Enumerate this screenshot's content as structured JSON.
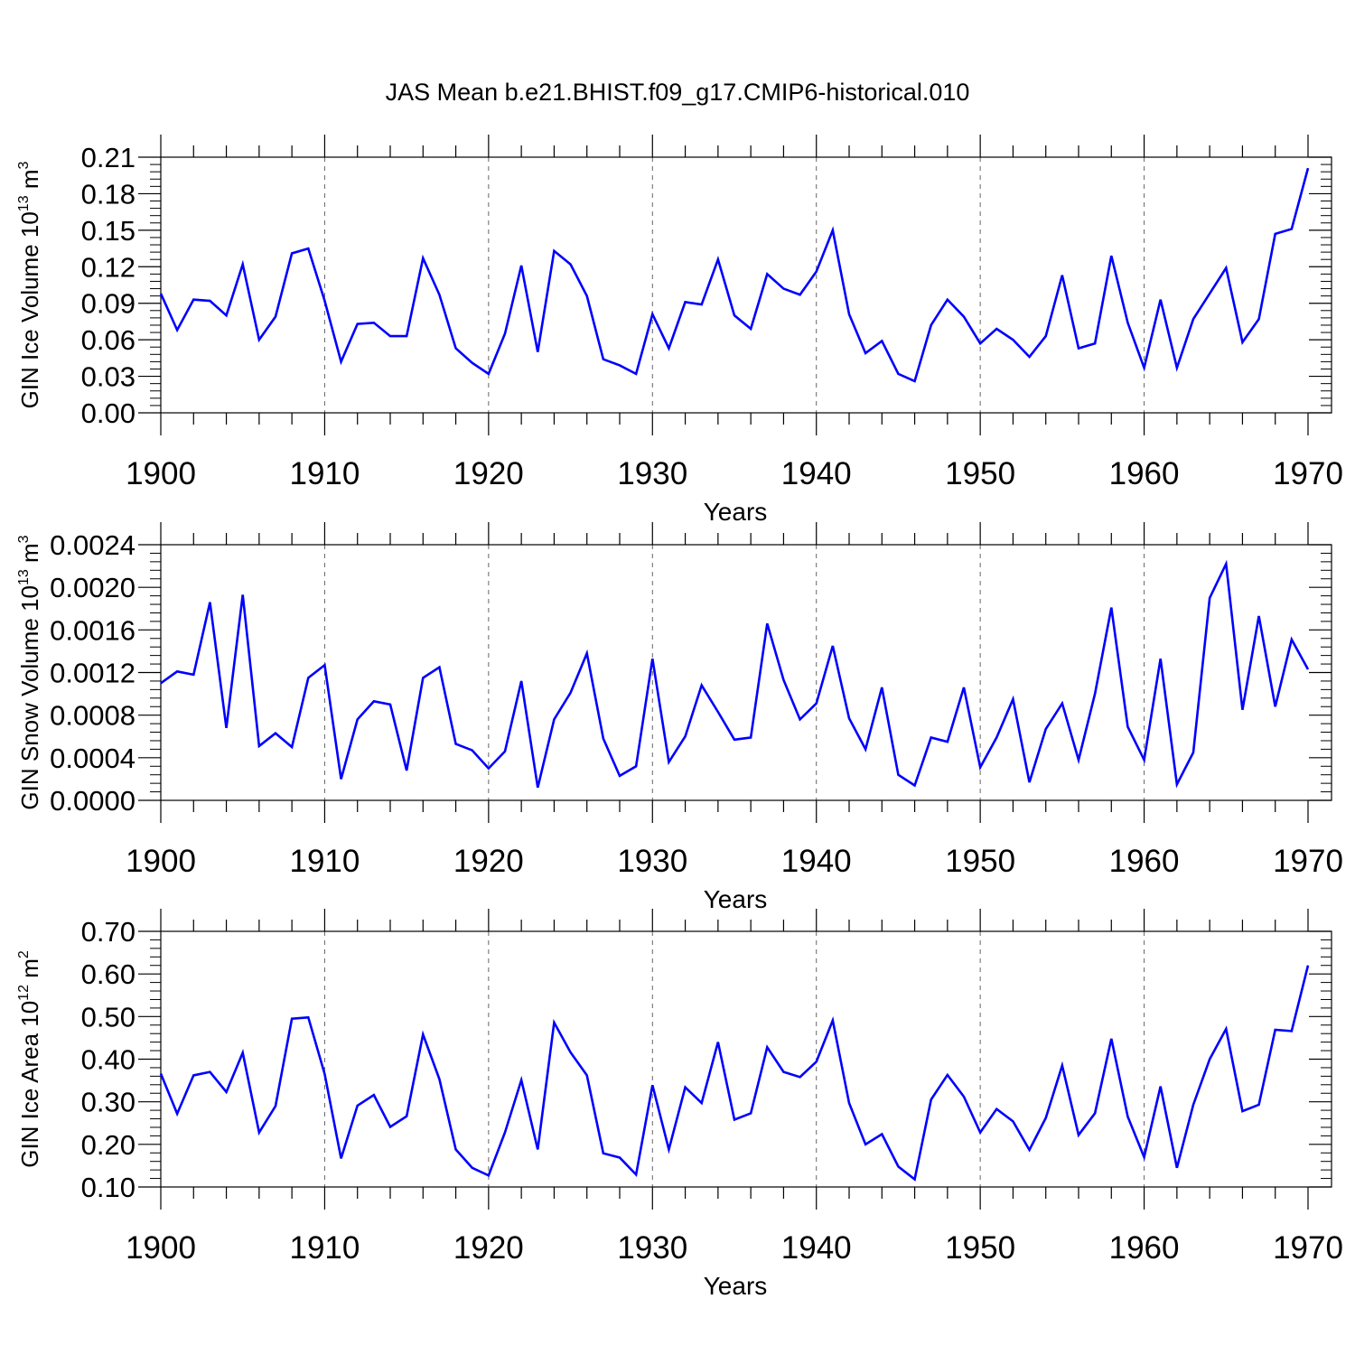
{
  "chart_data": {
    "type": "line",
    "title": "JAS Mean b.e21.BHIST.f09_g17.CMIP6-historical.010",
    "line_color": "#0000ff",
    "x_start_year": 1900,
    "x_end_year": 1970,
    "xlim": [
      1900,
      1970
    ],
    "xticks": [
      "1900",
      "1910",
      "1920",
      "1930",
      "1940",
      "1950",
      "1960",
      "1970"
    ],
    "xlabel": "Years",
    "panels": [
      {
        "id": "ice-volume",
        "ylabel": {
          "text": "GIN Ice Volume 10",
          "exp": "13",
          "unit": "m",
          "unit_exp": "3"
        },
        "ylim": [
          0.0,
          0.21
        ],
        "yticks": [
          "0.00",
          "0.03",
          "0.06",
          "0.09",
          "0.12",
          "0.15",
          "0.18",
          "0.21"
        ],
        "values": [
          0.098,
          0.068,
          0.093,
          0.092,
          0.08,
          0.122,
          0.06,
          0.079,
          0.131,
          0.135,
          0.092,
          0.042,
          0.073,
          0.074,
          0.063,
          0.063,
          0.127,
          0.097,
          0.053,
          0.041,
          0.032,
          0.065,
          0.121,
          0.05,
          0.133,
          0.122,
          0.096,
          0.044,
          0.039,
          0.032,
          0.081,
          0.053,
          0.091,
          0.089,
          0.126,
          0.08,
          0.069,
          0.114,
          0.102,
          0.097,
          0.116,
          0.15,
          0.081,
          0.049,
          0.059,
          0.032,
          0.026,
          0.072,
          0.093,
          0.079,
          0.057,
          0.069,
          0.06,
          0.046,
          0.063,
          0.113,
          0.053,
          0.057,
          0.129,
          0.074,
          0.037,
          0.093,
          0.037,
          0.077,
          0.098,
          0.119,
          0.058,
          0.077,
          0.147,
          0.151,
          0.201
        ]
      },
      {
        "id": "snow-volume",
        "ylabel": {
          "text": "GIN Snow Volume 10",
          "exp": "13",
          "unit": "m",
          "unit_exp": "3"
        },
        "ylim": [
          0.0,
          0.0024
        ],
        "yticks": [
          "0.0000",
          "0.0004",
          "0.0008",
          "0.0012",
          "0.0016",
          "0.0020",
          "0.0024"
        ],
        "values": [
          0.0011,
          0.00121,
          0.00118,
          0.00186,
          0.00068,
          0.00193,
          0.00051,
          0.00063,
          0.0005,
          0.00115,
          0.00127,
          0.0002,
          0.00076,
          0.00093,
          0.0009,
          0.00028,
          0.00115,
          0.00125,
          0.00053,
          0.00047,
          0.0003,
          0.00046,
          0.00112,
          0.00012,
          0.00076,
          0.00101,
          0.00138,
          0.00058,
          0.00023,
          0.00032,
          0.00133,
          0.00036,
          0.0006,
          0.00108,
          0.00083,
          0.00057,
          0.00059,
          0.00166,
          0.00113,
          0.00076,
          0.00091,
          0.00145,
          0.00077,
          0.00048,
          0.00106,
          0.00024,
          0.00014,
          0.00059,
          0.00055,
          0.00106,
          0.00031,
          0.00059,
          0.00095,
          0.00017,
          0.00067,
          0.00091,
          0.00038,
          0.001,
          0.00181,
          0.00069,
          0.00038,
          0.00133,
          0.00015,
          0.00045,
          0.0019,
          0.00222,
          0.00085,
          0.00173,
          0.00088,
          0.00151,
          0.00123
        ]
      },
      {
        "id": "ice-area",
        "ylabel": {
          "text": "GIN Ice Area 10",
          "exp": "12",
          "unit": "m",
          "unit_exp": "2"
        },
        "ylim": [
          0.1,
          0.7
        ],
        "yticks": [
          "0.10",
          "0.20",
          "0.30",
          "0.40",
          "0.50",
          "0.60",
          "0.70"
        ],
        "values": [
          0.366,
          0.272,
          0.362,
          0.37,
          0.323,
          0.415,
          0.228,
          0.29,
          0.495,
          0.498,
          0.365,
          0.167,
          0.291,
          0.316,
          0.241,
          0.266,
          0.458,
          0.353,
          0.188,
          0.145,
          0.127,
          0.228,
          0.351,
          0.188,
          0.486,
          0.416,
          0.362,
          0.179,
          0.169,
          0.129,
          0.339,
          0.188,
          0.334,
          0.297,
          0.44,
          0.258,
          0.273,
          0.428,
          0.37,
          0.358,
          0.394,
          0.491,
          0.297,
          0.2,
          0.224,
          0.148,
          0.118,
          0.305,
          0.363,
          0.312,
          0.228,
          0.283,
          0.254,
          0.187,
          0.262,
          0.385,
          0.222,
          0.273,
          0.448,
          0.265,
          0.17,
          0.336,
          0.145,
          0.293,
          0.4,
          0.471,
          0.278,
          0.293,
          0.469,
          0.466,
          0.62
        ]
      }
    ]
  }
}
